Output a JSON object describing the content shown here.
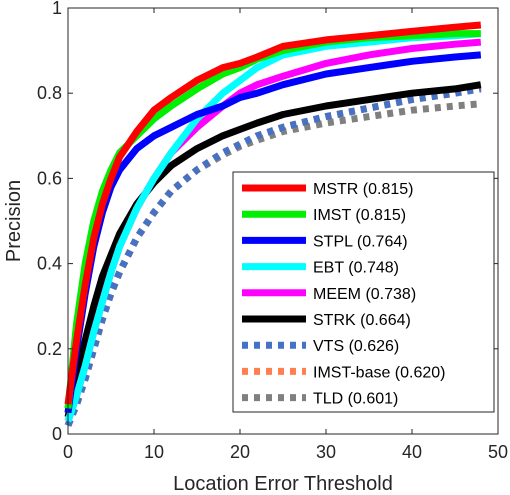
{
  "chart_data": {
    "type": "line",
    "xlabel": "Location Error Threshold",
    "ylabel": "Precision",
    "xlim": [
      0,
      50
    ],
    "ylim": [
      0,
      1
    ],
    "xticks": [
      "0",
      "10",
      "20",
      "30",
      "40",
      "50"
    ],
    "yticks": [
      "0",
      "0.2",
      "0.4",
      "0.6",
      "0.8",
      "1"
    ],
    "grid": false,
    "legend_position": "bottom-right",
    "x": [
      0,
      1,
      2,
      3,
      4,
      5,
      6,
      8,
      10,
      12,
      15,
      18,
      20,
      22,
      25,
      30,
      35,
      40,
      45,
      48
    ],
    "series": [
      {
        "name": "MSTR (0.815)",
        "color": "#ff0000",
        "style": "solid",
        "values": [
          0.07,
          0.22,
          0.35,
          0.46,
          0.54,
          0.6,
          0.65,
          0.71,
          0.76,
          0.79,
          0.83,
          0.86,
          0.87,
          0.885,
          0.91,
          0.925,
          0.935,
          0.945,
          0.955,
          0.96
        ]
      },
      {
        "name": "IMST (0.815)",
        "color": "#00ee00",
        "style": "solid",
        "values": [
          0.06,
          0.26,
          0.4,
          0.5,
          0.57,
          0.62,
          0.66,
          0.7,
          0.74,
          0.77,
          0.81,
          0.845,
          0.86,
          0.88,
          0.9,
          0.92,
          0.93,
          0.935,
          0.94,
          0.94
        ]
      },
      {
        "name": "STPL (0.764)",
        "color": "#0000ff",
        "style": "solid",
        "values": [
          0.05,
          0.2,
          0.33,
          0.44,
          0.52,
          0.58,
          0.62,
          0.67,
          0.7,
          0.72,
          0.75,
          0.77,
          0.79,
          0.8,
          0.82,
          0.845,
          0.86,
          0.875,
          0.885,
          0.89
        ]
      },
      {
        "name": "EBT (0.748)",
        "color": "#00ffff",
        "style": "solid",
        "values": [
          0.03,
          0.09,
          0.16,
          0.24,
          0.31,
          0.38,
          0.44,
          0.53,
          0.6,
          0.66,
          0.74,
          0.8,
          0.83,
          0.86,
          0.89,
          0.91,
          0.92,
          0.93,
          0.935,
          0.94
        ]
      },
      {
        "name": "MEEM (0.738)",
        "color": "#ff00ff",
        "style": "solid",
        "values": [
          0.03,
          0.09,
          0.16,
          0.24,
          0.31,
          0.38,
          0.44,
          0.53,
          0.6,
          0.66,
          0.72,
          0.77,
          0.8,
          0.82,
          0.84,
          0.87,
          0.89,
          0.905,
          0.915,
          0.92
        ]
      },
      {
        "name": "STRK (0.664)",
        "color": "#000000",
        "style": "solid",
        "values": [
          0.04,
          0.13,
          0.22,
          0.3,
          0.37,
          0.42,
          0.47,
          0.54,
          0.59,
          0.63,
          0.67,
          0.7,
          0.715,
          0.73,
          0.75,
          0.77,
          0.785,
          0.8,
          0.81,
          0.82
        ]
      },
      {
        "name": "VTS (0.626)",
        "color": "#4472c4",
        "style": "dotted",
        "values": [
          0.02,
          0.07,
          0.13,
          0.2,
          0.27,
          0.33,
          0.38,
          0.46,
          0.52,
          0.57,
          0.62,
          0.66,
          0.68,
          0.7,
          0.72,
          0.745,
          0.765,
          0.785,
          0.8,
          0.81
        ]
      },
      {
        "name": "IMST-base (0.620)",
        "color": "#ff7f50",
        "style": "dotted",
        "values": [
          0.02,
          0.07,
          0.13,
          0.2,
          0.27,
          0.33,
          0.38,
          0.46,
          0.52,
          0.57,
          0.62,
          0.66,
          0.68,
          0.7,
          0.72,
          0.745,
          0.765,
          0.785,
          0.8,
          0.815
        ]
      },
      {
        "name": "TLD (0.601)",
        "color": "#808080",
        "style": "dotted",
        "values": [
          0.02,
          0.07,
          0.13,
          0.2,
          0.27,
          0.33,
          0.38,
          0.46,
          0.52,
          0.57,
          0.62,
          0.655,
          0.675,
          0.69,
          0.71,
          0.73,
          0.745,
          0.76,
          0.77,
          0.775
        ]
      }
    ]
  }
}
